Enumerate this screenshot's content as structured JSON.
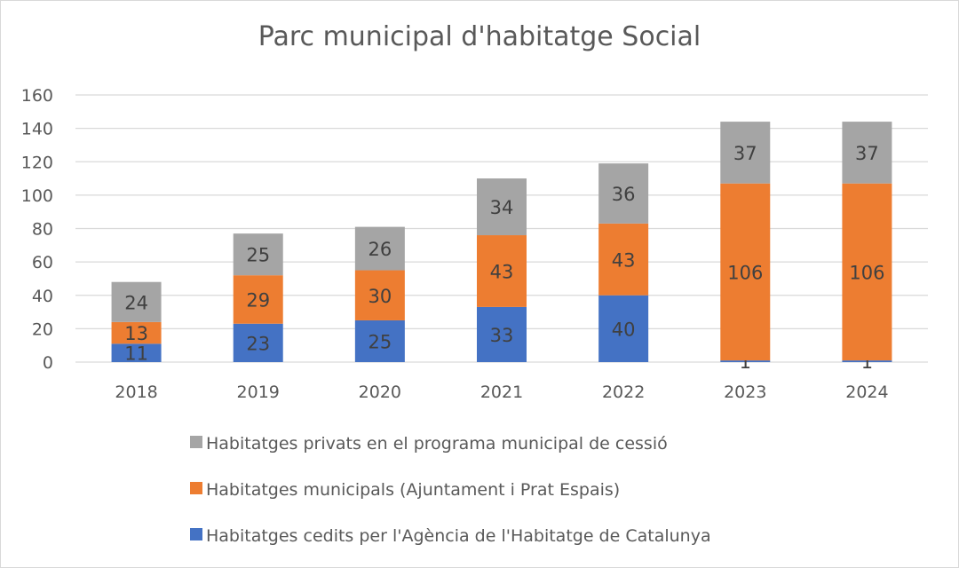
{
  "chart_data": {
    "type": "bar",
    "stacked": true,
    "title": "Parc municipal d'habitatge Social",
    "xlabel": "",
    "ylabel": "",
    "ylim": [
      0,
      160
    ],
    "yticks": [
      0,
      20,
      40,
      60,
      80,
      100,
      120,
      140,
      160
    ],
    "grid": true,
    "legend_position": "bottom",
    "categories": [
      "2018",
      "2019",
      "2020",
      "2021",
      "2022",
      "2023",
      "2024"
    ],
    "series": [
      {
        "name": "Habitatges cedits per l'Agència de l'Habitatge de Catalunya",
        "color": "#4472c4",
        "values": [
          11,
          23,
          25,
          33,
          40,
          1,
          1
        ]
      },
      {
        "name": "Habitatges municipals (Ajuntament i Prat Espais)",
        "color": "#ed7d31",
        "values": [
          13,
          29,
          30,
          43,
          43,
          106,
          106
        ]
      },
      {
        "name": "Habitatges privats en el programa municipal de cessió",
        "color": "#a5a5a5",
        "values": [
          24,
          25,
          26,
          34,
          36,
          37,
          37
        ]
      }
    ],
    "legend_order": [
      2,
      1,
      0
    ]
  }
}
